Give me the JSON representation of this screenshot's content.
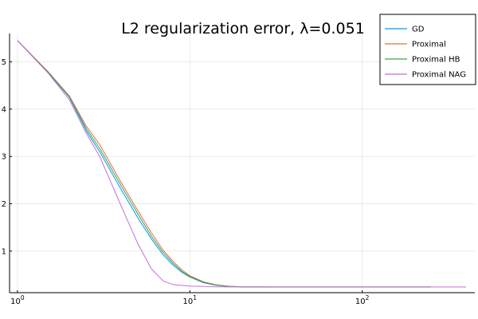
{
  "chart_data": {
    "type": "line",
    "title": "L2 regularization error, λ=0.051",
    "xlabel": "",
    "ylabel": "",
    "xscale": "log10",
    "xlim": [
      0.9,
      450
    ],
    "ylim": [
      0.12,
      5.6
    ],
    "x_ticks": [
      {
        "value": 1,
        "base": "10",
        "exp": "0"
      },
      {
        "value": 10,
        "base": "10",
        "exp": "1"
      },
      {
        "value": 100,
        "base": "10",
        "exp": "2"
      }
    ],
    "y_ticks": [
      1,
      2,
      3,
      4,
      5
    ],
    "grid": true,
    "legend": "top-right",
    "series": [
      {
        "name": "GD",
        "color": "#009AFA",
        "points": [
          [
            1,
            5.45
          ],
          [
            1.5,
            4.78
          ],
          [
            2,
            4.25
          ],
          [
            2.5,
            3.55
          ],
          [
            3,
            3.1
          ],
          [
            4,
            2.3
          ],
          [
            5,
            1.7
          ],
          [
            6,
            1.25
          ],
          [
            7,
            0.92
          ],
          [
            8,
            0.7
          ],
          [
            9,
            0.55
          ],
          [
            10,
            0.45
          ],
          [
            12,
            0.33
          ],
          [
            14,
            0.28
          ],
          [
            17,
            0.25
          ],
          [
            20,
            0.245
          ],
          [
            30,
            0.24
          ],
          [
            60,
            0.24
          ],
          [
            120,
            0.24
          ],
          [
            250,
            0.24
          ]
        ]
      },
      {
        "name": "Proximal",
        "color": "#E26F46",
        "points": [
          [
            1,
            5.45
          ],
          [
            1.5,
            4.8
          ],
          [
            2,
            4.28
          ],
          [
            2.5,
            3.65
          ],
          [
            3,
            3.25
          ],
          [
            4,
            2.45
          ],
          [
            5,
            1.85
          ],
          [
            6,
            1.38
          ],
          [
            7,
            1.02
          ],
          [
            8,
            0.78
          ],
          [
            9,
            0.6
          ],
          [
            10,
            0.48
          ],
          [
            12,
            0.35
          ],
          [
            14,
            0.29
          ],
          [
            17,
            0.255
          ],
          [
            20,
            0.245
          ],
          [
            30,
            0.24
          ],
          [
            60,
            0.24
          ],
          [
            120,
            0.24
          ],
          [
            250,
            0.24
          ]
        ]
      },
      {
        "name": "Proximal HB",
        "color": "#3DA44D",
        "points": [
          [
            1,
            5.45
          ],
          [
            1.5,
            4.79
          ],
          [
            2,
            4.26
          ],
          [
            2.5,
            3.6
          ],
          [
            3,
            3.17
          ],
          [
            4,
            2.38
          ],
          [
            5,
            1.78
          ],
          [
            6,
            1.31
          ],
          [
            7,
            0.97
          ],
          [
            8,
            0.74
          ],
          [
            9,
            0.57
          ],
          [
            10,
            0.46
          ],
          [
            12,
            0.34
          ],
          [
            14,
            0.285
          ],
          [
            17,
            0.25
          ],
          [
            20,
            0.245
          ],
          [
            30,
            0.24
          ],
          [
            60,
            0.24
          ],
          [
            120,
            0.24
          ],
          [
            250,
            0.24
          ]
        ]
      },
      {
        "name": "Proximal NAG",
        "color": "#C271D2",
        "points": [
          [
            1,
            5.45
          ],
          [
            1.5,
            4.77
          ],
          [
            2,
            4.2
          ],
          [
            2.5,
            3.5
          ],
          [
            3,
            3.0
          ],
          [
            4,
            1.95
          ],
          [
            5,
            1.15
          ],
          [
            6,
            0.62
          ],
          [
            7,
            0.37
          ],
          [
            8,
            0.29
          ],
          [
            10,
            0.26
          ],
          [
            14,
            0.245
          ],
          [
            20,
            0.24
          ],
          [
            50,
            0.24
          ],
          [
            150,
            0.24
          ],
          [
            400,
            0.24
          ]
        ]
      }
    ]
  }
}
